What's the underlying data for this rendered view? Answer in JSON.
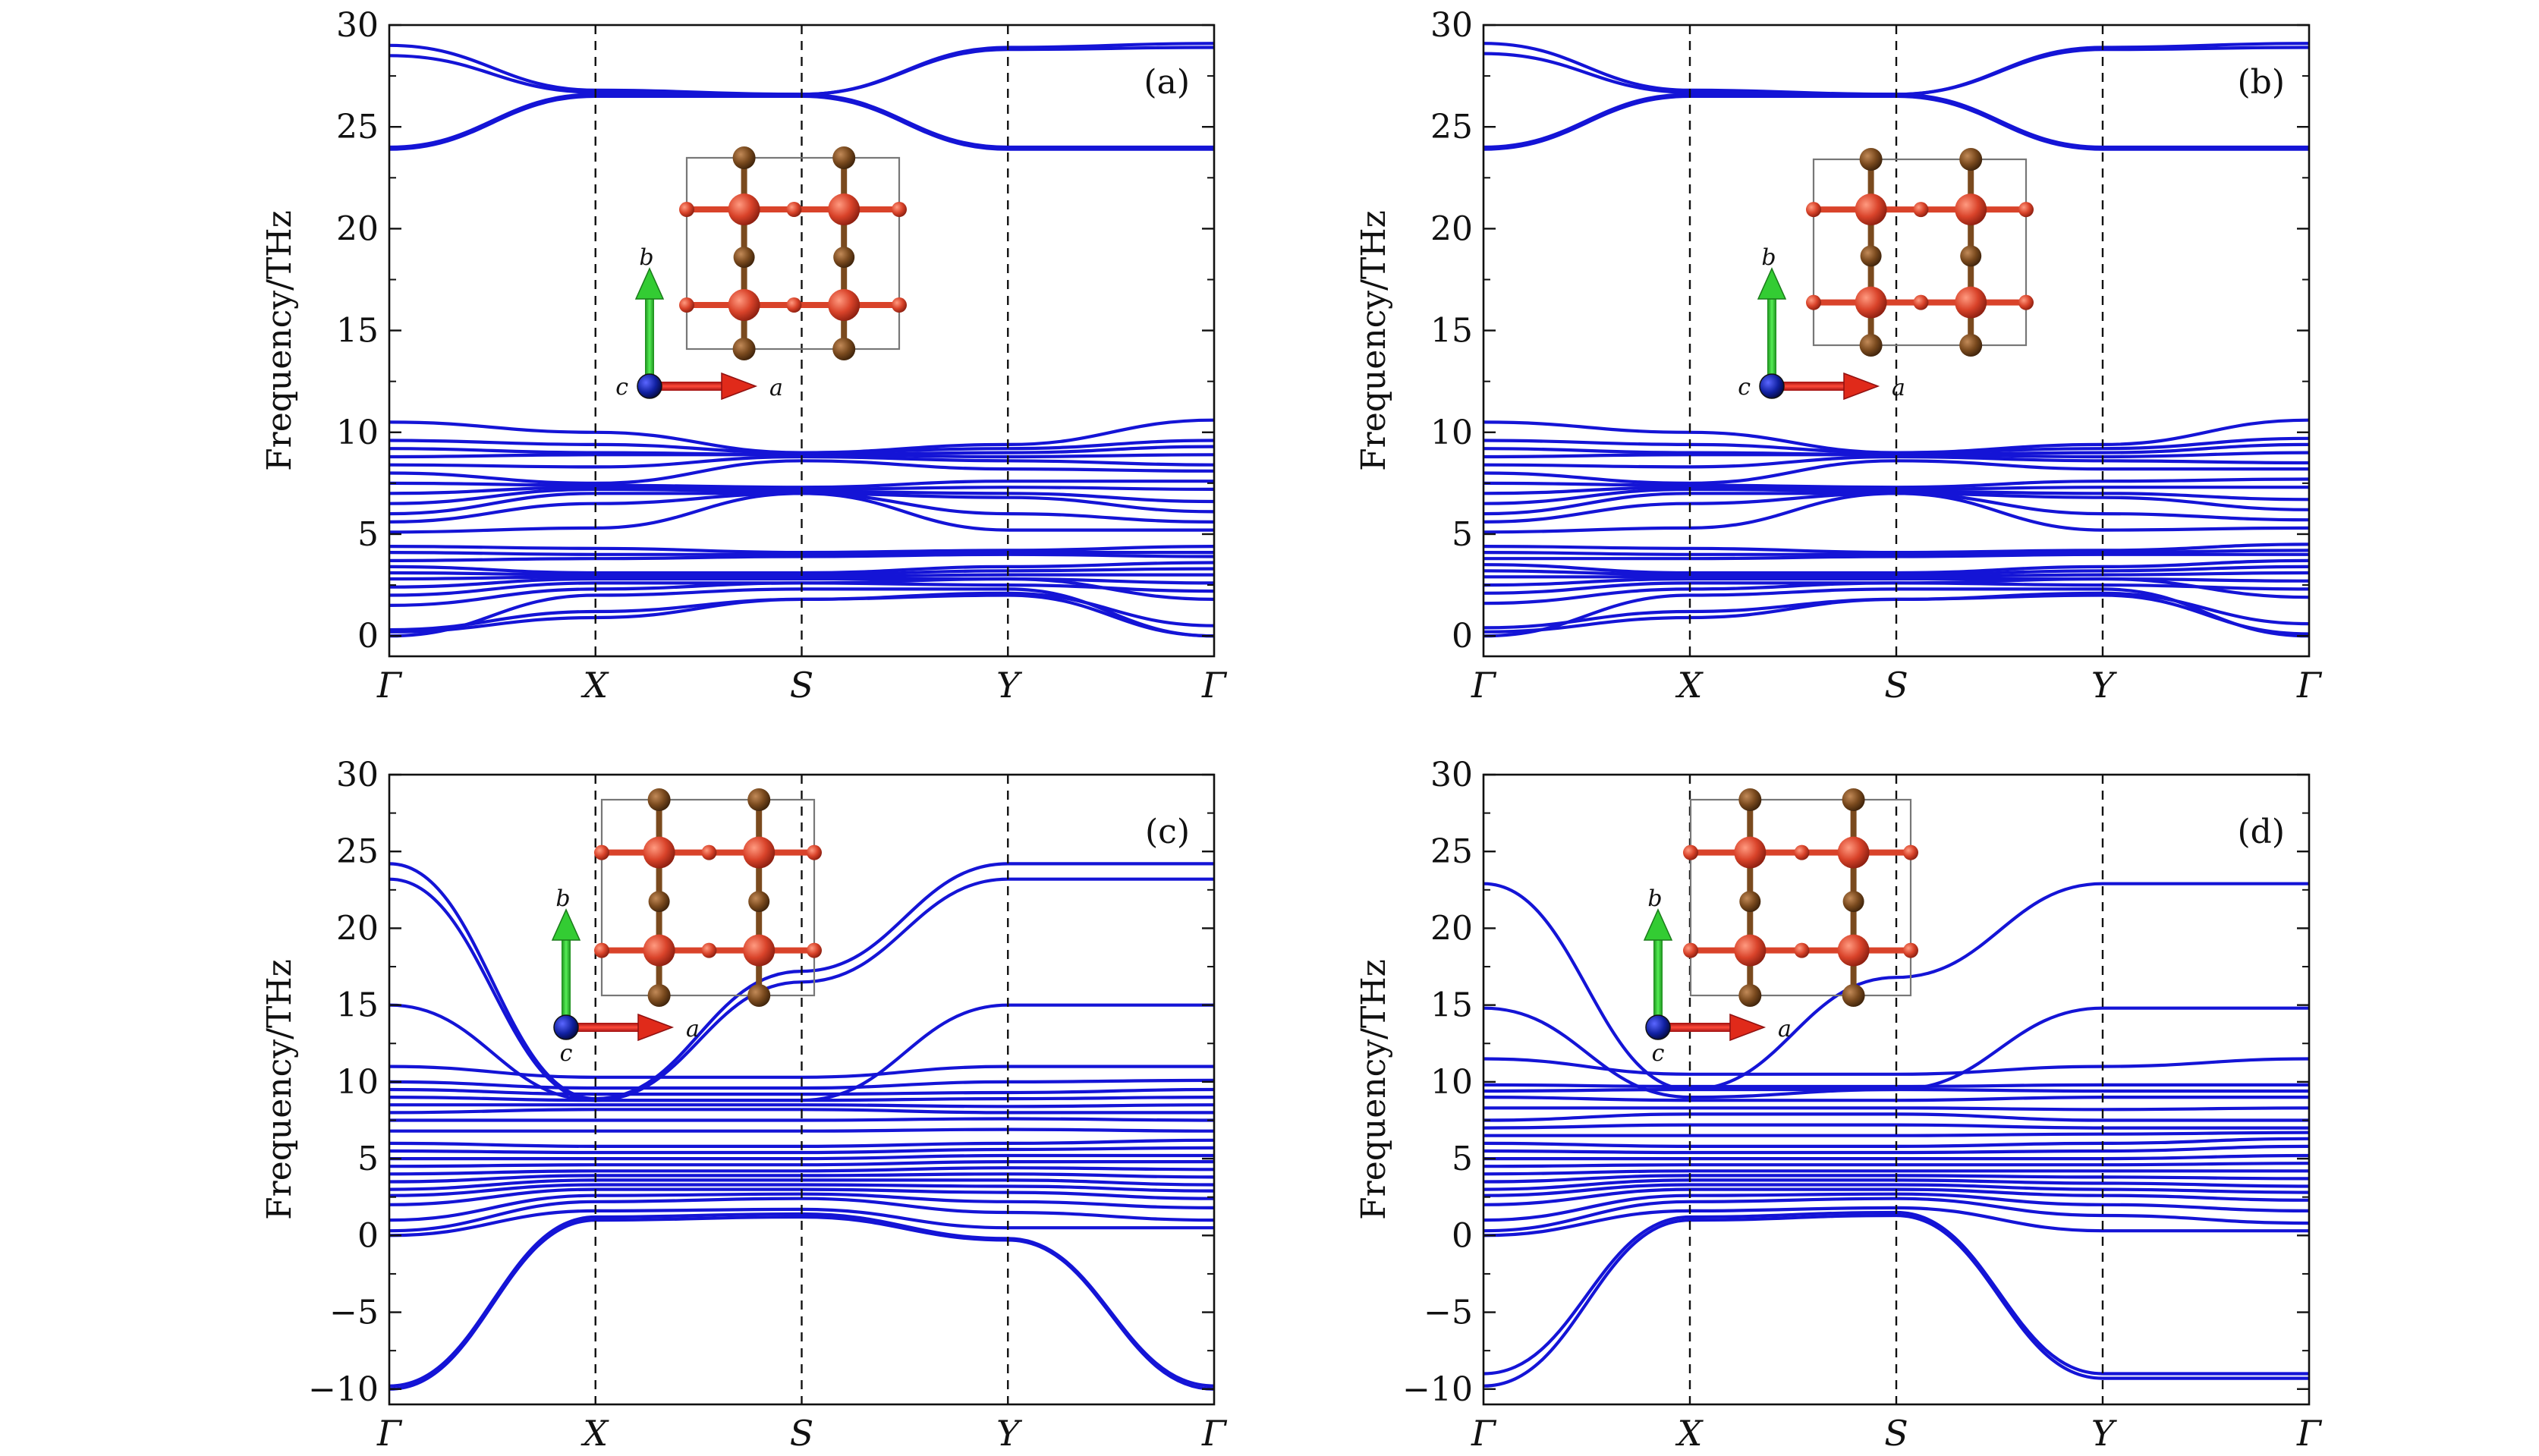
{
  "chart_data": [
    {
      "type": "line",
      "panel_label": "(a)",
      "ylabel": "Frequency/THz",
      "ylim": [
        -1,
        30
      ],
      "yticks": [
        0,
        5,
        10,
        15,
        20,
        25,
        30
      ],
      "kpoints": [
        "Γ",
        "X",
        "S",
        "Y",
        "Γ"
      ],
      "kpoint_positions": [
        0,
        1,
        2,
        3,
        4
      ],
      "inset_axes": {
        "up": "b",
        "right": "a",
        "out": "c"
      },
      "bands": [
        [
          0.0,
          2.0,
          2.3,
          2.3,
          0.0
        ],
        [
          0.2,
          0.9,
          1.8,
          2.0,
          0.0
        ],
        [
          0.3,
          1.2,
          1.8,
          2.1,
          0.5
        ],
        [
          1.5,
          2.3,
          2.6,
          2.8,
          1.8
        ],
        [
          2.0,
          2.6,
          2.6,
          2.5,
          2.2
        ],
        [
          2.4,
          2.8,
          2.8,
          2.8,
          2.6
        ],
        [
          2.8,
          2.9,
          2.9,
          3.0,
          3.0
        ],
        [
          3.1,
          3.0,
          3.0,
          3.2,
          3.3
        ],
        [
          3.4,
          3.1,
          3.1,
          3.4,
          3.6
        ],
        [
          3.7,
          3.8,
          3.9,
          4.0,
          3.9
        ],
        [
          4.1,
          4.0,
          4.0,
          4.1,
          4.1
        ],
        [
          4.4,
          4.3,
          4.1,
          4.2,
          4.4
        ],
        [
          5.1,
          5.3,
          7.0,
          5.2,
          5.2
        ],
        [
          5.6,
          6.5,
          7.0,
          6.0,
          5.6
        ],
        [
          6.0,
          7.0,
          7.0,
          6.8,
          6.1
        ],
        [
          6.5,
          7.2,
          7.1,
          7.0,
          6.6
        ],
        [
          7.0,
          7.3,
          7.2,
          7.3,
          7.2
        ],
        [
          7.5,
          7.4,
          7.3,
          7.6,
          7.6
        ],
        [
          8.0,
          7.5,
          8.6,
          8.2,
          8.1
        ],
        [
          8.4,
          8.3,
          8.8,
          8.6,
          8.4
        ],
        [
          8.8,
          8.9,
          8.9,
          8.8,
          8.9
        ],
        [
          9.2,
          9.0,
          8.9,
          9.0,
          9.3
        ],
        [
          9.6,
          9.4,
          9.0,
          9.2,
          9.6
        ],
        [
          10.5,
          10.0,
          9.0,
          9.4,
          10.6
        ],
        [
          23.9,
          26.5,
          26.5,
          23.9,
          23.9
        ],
        [
          24.0,
          26.6,
          26.6,
          24.0,
          24.0
        ],
        [
          28.5,
          26.7,
          26.6,
          28.8,
          28.9
        ],
        [
          29.0,
          26.8,
          26.6,
          28.9,
          29.1
        ]
      ]
    },
    {
      "type": "line",
      "panel_label": "(b)",
      "ylabel": "Frequency/THz",
      "ylim": [
        -1,
        30
      ],
      "yticks": [
        0,
        5,
        10,
        15,
        20,
        25,
        30
      ],
      "kpoints": [
        "Γ",
        "X",
        "S",
        "Y",
        "Γ"
      ],
      "kpoint_positions": [
        0,
        1,
        2,
        3,
        4
      ],
      "inset_axes": {
        "up": "b",
        "right": "a",
        "out": "c"
      },
      "bands": [
        [
          0.0,
          2.0,
          2.3,
          2.3,
          0.0
        ],
        [
          0.2,
          0.9,
          1.8,
          2.0,
          0.1
        ],
        [
          0.4,
          1.2,
          1.8,
          2.1,
          0.6
        ],
        [
          1.6,
          2.3,
          2.6,
          2.8,
          1.9
        ],
        [
          2.1,
          2.6,
          2.6,
          2.5,
          2.3
        ],
        [
          2.5,
          2.8,
          2.8,
          2.8,
          2.7
        ],
        [
          2.9,
          2.9,
          2.9,
          3.0,
          3.1
        ],
        [
          3.2,
          3.0,
          3.0,
          3.2,
          3.4
        ],
        [
          3.5,
          3.1,
          3.1,
          3.4,
          3.7
        ],
        [
          3.8,
          3.8,
          3.9,
          4.0,
          4.0
        ],
        [
          4.1,
          4.0,
          4.0,
          4.1,
          4.2
        ],
        [
          4.4,
          4.3,
          4.1,
          4.2,
          4.5
        ],
        [
          5.1,
          5.3,
          7.0,
          5.2,
          5.3
        ],
        [
          5.6,
          6.5,
          7.0,
          6.0,
          5.7
        ],
        [
          6.0,
          7.0,
          7.0,
          6.8,
          6.2
        ],
        [
          6.5,
          7.2,
          7.1,
          7.0,
          6.7
        ],
        [
          7.0,
          7.3,
          7.2,
          7.3,
          7.3
        ],
        [
          7.5,
          7.4,
          7.3,
          7.6,
          7.7
        ],
        [
          8.0,
          7.5,
          8.6,
          8.2,
          8.2
        ],
        [
          8.4,
          8.3,
          8.8,
          8.6,
          8.5
        ],
        [
          8.8,
          8.9,
          8.9,
          8.8,
          9.0
        ],
        [
          9.2,
          9.0,
          8.9,
          9.0,
          9.4
        ],
        [
          9.6,
          9.4,
          9.0,
          9.2,
          9.7
        ],
        [
          10.5,
          10.0,
          9.0,
          9.4,
          10.6
        ],
        [
          23.9,
          26.5,
          26.5,
          23.9,
          23.9
        ],
        [
          24.0,
          26.6,
          26.6,
          24.0,
          24.0
        ],
        [
          28.6,
          26.7,
          26.6,
          28.8,
          28.9
        ],
        [
          29.1,
          26.8,
          26.6,
          28.9,
          29.1
        ]
      ]
    },
    {
      "type": "line",
      "panel_label": "(c)",
      "ylabel": "Frequency/THz",
      "ylim": [
        -11,
        30
      ],
      "yticks": [
        -10,
        -5,
        0,
        5,
        10,
        15,
        20,
        25,
        30
      ],
      "kpoints": [
        "Γ",
        "X",
        "S",
        "Y",
        "Γ"
      ],
      "kpoint_positions": [
        0,
        1,
        2,
        3,
        4
      ],
      "inset_axes": {
        "up": "b",
        "right": "a",
        "out": "c"
      },
      "bands": [
        [
          -10.0,
          1.0,
          1.2,
          -0.3,
          -10.0
        ],
        [
          -9.8,
          1.2,
          1.4,
          -0.2,
          -9.8
        ],
        [
          0.0,
          1.6,
          1.7,
          0.5,
          0.5
        ],
        [
          0.3,
          2.2,
          2.4,
          1.5,
          1.0
        ],
        [
          1.0,
          2.6,
          2.7,
          2.2,
          1.8
        ],
        [
          2.0,
          3.0,
          3.0,
          2.8,
          2.4
        ],
        [
          2.6,
          3.3,
          3.3,
          3.2,
          2.9
        ],
        [
          3.0,
          3.6,
          3.6,
          3.6,
          3.3
        ],
        [
          3.5,
          3.9,
          3.9,
          4.0,
          3.8
        ],
        [
          4.0,
          4.2,
          4.2,
          4.4,
          4.3
        ],
        [
          4.5,
          4.6,
          4.6,
          4.8,
          4.8
        ],
        [
          5.0,
          5.0,
          5.0,
          5.2,
          5.2
        ],
        [
          5.5,
          5.4,
          5.4,
          5.6,
          5.7
        ],
        [
          6.0,
          5.8,
          5.8,
          6.0,
          6.2
        ],
        [
          6.8,
          6.8,
          6.8,
          6.9,
          6.8
        ],
        [
          7.5,
          7.5,
          7.5,
          7.6,
          7.5
        ],
        [
          8.0,
          8.2,
          8.2,
          8.0,
          8.0
        ],
        [
          8.5,
          8.5,
          8.5,
          8.4,
          8.5
        ],
        [
          9.0,
          8.8,
          8.8,
          8.9,
          9.0
        ],
        [
          9.5,
          9.2,
          9.2,
          9.3,
          9.5
        ],
        [
          10.0,
          9.6,
          9.6,
          10.0,
          10.1
        ],
        [
          11.0,
          10.3,
          10.3,
          11.0,
          11.0
        ],
        [
          15.0,
          8.8,
          8.8,
          15.0,
          15.0
        ],
        [
          23.2,
          8.8,
          16.5,
          23.2,
          23.2
        ],
        [
          24.2,
          8.9,
          17.2,
          24.2,
          24.2
        ]
      ]
    },
    {
      "type": "line",
      "panel_label": "(d)",
      "ylabel": "Frequency/THz",
      "ylim": [
        -11,
        30
      ],
      "yticks": [
        -10,
        -5,
        0,
        5,
        10,
        15,
        20,
        25,
        30
      ],
      "kpoints": [
        "Γ",
        "X",
        "S",
        "Y",
        "Γ"
      ],
      "kpoint_positions": [
        0,
        1,
        2,
        3,
        4
      ],
      "inset_axes": {
        "up": "b",
        "right": "a",
        "out": "c"
      },
      "bands": [
        [
          -9.8,
          1.0,
          1.3,
          -9.3,
          -9.3
        ],
        [
          -9.0,
          1.2,
          1.5,
          -9.0,
          -9.0
        ],
        [
          0.0,
          1.6,
          1.8,
          0.3,
          0.3
        ],
        [
          0.3,
          2.2,
          2.4,
          1.3,
          0.8
        ],
        [
          1.0,
          2.6,
          2.7,
          2.0,
          1.6
        ],
        [
          2.0,
          3.0,
          3.0,
          2.6,
          2.3
        ],
        [
          2.6,
          3.3,
          3.3,
          3.0,
          2.8
        ],
        [
          3.0,
          3.6,
          3.6,
          3.4,
          3.2
        ],
        [
          3.5,
          3.9,
          3.9,
          3.8,
          3.7
        ],
        [
          4.0,
          4.2,
          4.2,
          4.2,
          4.2
        ],
        [
          4.5,
          4.6,
          4.6,
          4.6,
          4.7
        ],
        [
          5.0,
          5.0,
          5.0,
          5.0,
          5.2
        ],
        [
          5.5,
          5.4,
          5.4,
          5.5,
          5.8
        ],
        [
          6.0,
          5.8,
          5.8,
          6.0,
          6.3
        ],
        [
          6.5,
          6.5,
          6.5,
          6.6,
          6.7
        ],
        [
          7.0,
          7.2,
          7.2,
          7.0,
          7.0
        ],
        [
          7.5,
          7.9,
          7.9,
          7.5,
          7.5
        ],
        [
          8.3,
          8.3,
          8.3,
          8.2,
          8.3
        ],
        [
          9.0,
          8.8,
          8.8,
          9.0,
          9.0
        ],
        [
          9.4,
          9.5,
          9.5,
          9.4,
          9.4
        ],
        [
          9.8,
          9.7,
          9.7,
          9.8,
          9.8
        ],
        [
          11.5,
          10.5,
          10.5,
          11.0,
          11.5
        ],
        [
          14.8,
          9.0,
          9.5,
          14.8,
          14.8
        ],
        [
          22.9,
          9.5,
          16.8,
          22.9,
          22.9
        ]
      ]
    }
  ]
}
